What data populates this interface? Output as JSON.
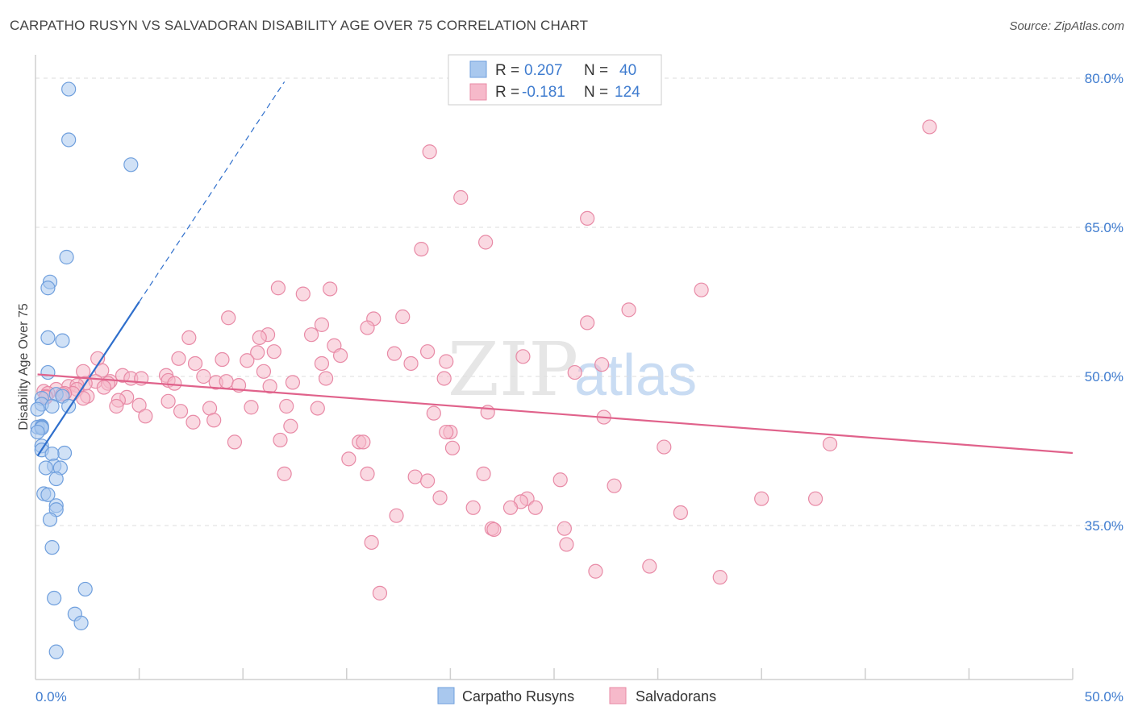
{
  "title": "CARPATHO RUSYN VS SALVADORAN DISABILITY AGE OVER 75 CORRELATION CHART",
  "source": "Source: ZipAtlas.com",
  "watermark": {
    "zip": "ZIP",
    "atlas": "atlas"
  },
  "legend": {
    "rows": [
      {
        "r_label": "R = ",
        "r_value": "0.207",
        "n_label": "N = ",
        "n_value": "40"
      },
      {
        "r_label": "R = ",
        "r_value": "-0.181",
        "n_label": "N = ",
        "n_value": "124"
      }
    ]
  },
  "bottom_legend": [
    "Carpatho Rusyns",
    "Salvadorans"
  ],
  "colors": {
    "blue_fill": "#a9c8ee",
    "blue_stroke": "#6f9fdd",
    "blue_line": "#2f6fcc",
    "pink_fill": "#f6b9ca",
    "pink_stroke": "#e88aa6",
    "pink_line": "#e0628b",
    "grid": "#dddddd",
    "tick_text": "#3f7ccf"
  },
  "chart_data": {
    "type": "scatter",
    "title": "CARPATHO RUSYN VS SALVADORAN DISABILITY AGE OVER 75 CORRELATION CHART",
    "xlabel": "",
    "ylabel": "Disability Age Over 75",
    "xlim": [
      0,
      50
    ],
    "ylim": [
      20,
      82
    ],
    "x_tick_labels": [
      "0.0%",
      "50.0%"
    ],
    "y_ticks": [
      35,
      50,
      65,
      80
    ],
    "y_tick_labels": [
      "35.0%",
      "50.0%",
      "65.0%",
      "80.0%"
    ],
    "series": [
      {
        "name": "Carpatho Rusyns",
        "R": 0.207,
        "N": 40,
        "trend": {
          "x0": 0.1,
          "y0": 42.0,
          "x1": 5.0,
          "y1": 57.5,
          "x_dash_end": 12.0
        },
        "points": [
          [
            1.6,
            78.9
          ],
          [
            1.6,
            73.8
          ],
          [
            4.6,
            71.3
          ],
          [
            1.5,
            62.0
          ],
          [
            0.7,
            59.5
          ],
          [
            0.6,
            58.9
          ],
          [
            0.6,
            53.9
          ],
          [
            1.3,
            53.6
          ],
          [
            0.6,
            50.4
          ],
          [
            1.0,
            48.2
          ],
          [
            1.3,
            48.0
          ],
          [
            0.3,
            47.8
          ],
          [
            0.3,
            47.2
          ],
          [
            0.8,
            47.0
          ],
          [
            1.6,
            47.0
          ],
          [
            0.1,
            46.7
          ],
          [
            0.3,
            45.0
          ],
          [
            0.1,
            44.9
          ],
          [
            0.3,
            44.9
          ],
          [
            0.3,
            44.8
          ],
          [
            0.1,
            44.4
          ],
          [
            0.3,
            43.0
          ],
          [
            0.3,
            42.6
          ],
          [
            1.4,
            42.3
          ],
          [
            0.8,
            42.2
          ],
          [
            0.9,
            41.0
          ],
          [
            1.2,
            40.8
          ],
          [
            0.5,
            40.8
          ],
          [
            1.0,
            39.7
          ],
          [
            0.4,
            38.2
          ],
          [
            0.6,
            38.1
          ],
          [
            1.0,
            37.0
          ],
          [
            1.0,
            36.6
          ],
          [
            0.7,
            35.6
          ],
          [
            0.8,
            32.8
          ],
          [
            2.4,
            28.6
          ],
          [
            0.9,
            27.7
          ],
          [
            1.9,
            26.1
          ],
          [
            2.2,
            25.2
          ],
          [
            1.0,
            22.3
          ]
        ]
      },
      {
        "name": "Salvadorans",
        "R": -0.181,
        "N": 124,
        "trend": {
          "x0": 0.1,
          "y0": 50.2,
          "x1": 50.0,
          "y1": 42.3
        },
        "points": [
          [
            43.1,
            75.1
          ],
          [
            19.0,
            72.6
          ],
          [
            20.5,
            68.0
          ],
          [
            26.6,
            65.9
          ],
          [
            21.7,
            63.5
          ],
          [
            18.6,
            62.8
          ],
          [
            11.7,
            58.9
          ],
          [
            14.2,
            58.8
          ],
          [
            12.9,
            58.3
          ],
          [
            32.1,
            58.7
          ],
          [
            28.6,
            56.7
          ],
          [
            9.3,
            55.9
          ],
          [
            17.7,
            56.0
          ],
          [
            16.3,
            55.8
          ],
          [
            13.8,
            55.2
          ],
          [
            26.6,
            55.4
          ],
          [
            16.0,
            54.9
          ],
          [
            13.3,
            54.2
          ],
          [
            11.2,
            54.2
          ],
          [
            7.4,
            53.9
          ],
          [
            10.8,
            53.9
          ],
          [
            14.4,
            53.1
          ],
          [
            11.5,
            52.5
          ],
          [
            10.7,
            52.4
          ],
          [
            18.9,
            52.5
          ],
          [
            17.3,
            52.3
          ],
          [
            14.7,
            52.1
          ],
          [
            23.5,
            52.0
          ],
          [
            3.0,
            51.8
          ],
          [
            9.0,
            51.7
          ],
          [
            10.2,
            51.6
          ],
          [
            6.9,
            51.8
          ],
          [
            19.8,
            51.5
          ],
          [
            18.1,
            51.3
          ],
          [
            7.7,
            51.3
          ],
          [
            13.8,
            51.3
          ],
          [
            27.3,
            51.2
          ],
          [
            2.3,
            50.5
          ],
          [
            3.2,
            50.6
          ],
          [
            6.3,
            50.1
          ],
          [
            8.1,
            50.0
          ],
          [
            11.0,
            50.5
          ],
          [
            26.0,
            50.4
          ],
          [
            14.0,
            49.8
          ],
          [
            19.7,
            49.8
          ],
          [
            4.2,
            50.1
          ],
          [
            4.6,
            49.8
          ],
          [
            5.1,
            49.8
          ],
          [
            6.4,
            49.6
          ],
          [
            3.6,
            49.5
          ],
          [
            2.9,
            49.5
          ],
          [
            3.5,
            49.3
          ],
          [
            12.4,
            49.4
          ],
          [
            8.7,
            49.4
          ],
          [
            9.2,
            49.5
          ],
          [
            9.8,
            49.1
          ],
          [
            11.3,
            49.0
          ],
          [
            6.7,
            49.3
          ],
          [
            2.4,
            49.3
          ],
          [
            1.6,
            49.0
          ],
          [
            3.3,
            48.9
          ],
          [
            2.0,
            49.1
          ],
          [
            1.0,
            48.7
          ],
          [
            2.0,
            48.7
          ],
          [
            1.8,
            48.3
          ],
          [
            1.4,
            48.3
          ],
          [
            0.4,
            48.5
          ],
          [
            0.6,
            48.3
          ],
          [
            0.5,
            48.0
          ],
          [
            1.3,
            48.2
          ],
          [
            2.5,
            48.0
          ],
          [
            2.3,
            47.8
          ],
          [
            4.4,
            47.9
          ],
          [
            4.0,
            47.6
          ],
          [
            0.5,
            47.9
          ],
          [
            6.4,
            47.5
          ],
          [
            5.0,
            47.1
          ],
          [
            3.9,
            47.0
          ],
          [
            8.4,
            46.8
          ],
          [
            12.1,
            47.0
          ],
          [
            10.4,
            46.9
          ],
          [
            13.6,
            46.8
          ],
          [
            7.0,
            46.5
          ],
          [
            5.3,
            46.0
          ],
          [
            8.6,
            45.6
          ],
          [
            7.6,
            45.4
          ],
          [
            19.2,
            46.3
          ],
          [
            21.8,
            46.4
          ],
          [
            27.4,
            45.9
          ],
          [
            12.3,
            45.0
          ],
          [
            20.0,
            44.4
          ],
          [
            19.8,
            44.4
          ],
          [
            9.6,
            43.4
          ],
          [
            11.8,
            43.6
          ],
          [
            15.6,
            43.4
          ],
          [
            15.8,
            43.4
          ],
          [
            20.1,
            42.8
          ],
          [
            30.3,
            42.9
          ],
          [
            38.3,
            43.2
          ],
          [
            15.1,
            41.7
          ],
          [
            12.0,
            40.2
          ],
          [
            16.0,
            40.2
          ],
          [
            21.6,
            40.2
          ],
          [
            18.3,
            39.9
          ],
          [
            25.3,
            39.6
          ],
          [
            18.9,
            39.5
          ],
          [
            27.9,
            39.0
          ],
          [
            19.5,
            37.8
          ],
          [
            23.7,
            37.7
          ],
          [
            35.0,
            37.7
          ],
          [
            37.6,
            37.7
          ],
          [
            23.4,
            37.4
          ],
          [
            22.9,
            36.8
          ],
          [
            21.1,
            36.8
          ],
          [
            24.1,
            36.8
          ],
          [
            31.1,
            36.3
          ],
          [
            17.4,
            36.0
          ],
          [
            22.0,
            34.7
          ],
          [
            22.1,
            34.6
          ],
          [
            25.5,
            34.7
          ],
          [
            16.2,
            33.3
          ],
          [
            25.6,
            33.1
          ],
          [
            27.0,
            30.4
          ],
          [
            29.6,
            30.9
          ],
          [
            33.0,
            29.8
          ],
          [
            16.6,
            28.2
          ]
        ]
      }
    ]
  }
}
